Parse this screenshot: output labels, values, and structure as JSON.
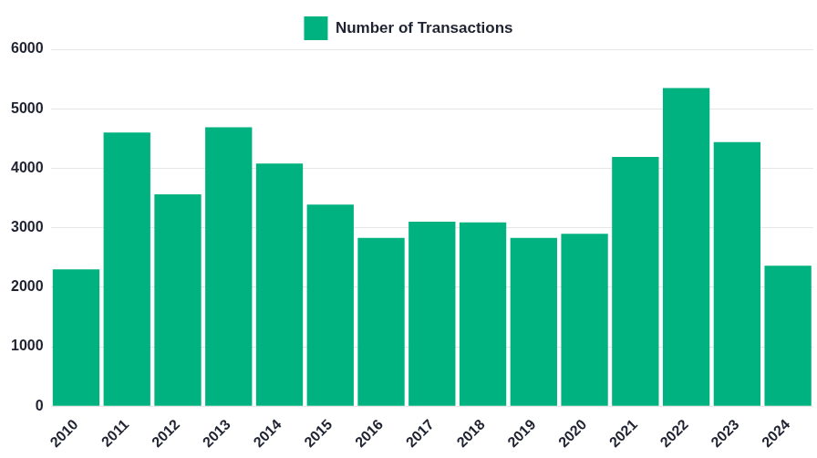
{
  "chart_data": {
    "type": "bar",
    "categories": [
      "2010",
      "2011",
      "2012",
      "2013",
      "2014",
      "2015",
      "2016",
      "2017",
      "2018",
      "2019",
      "2020",
      "2021",
      "2022",
      "2023",
      "2024"
    ],
    "series": [
      {
        "name": "Number of Transactions",
        "color": "#00b27f",
        "values": [
          2300,
          4600,
          3560,
          4690,
          4080,
          3390,
          2830,
          3100,
          3090,
          2830,
          2900,
          4190,
          5350,
          4440,
          2360
        ]
      }
    ],
    "ylim": [
      0,
      6000
    ],
    "yticks": [
      0,
      1000,
      2000,
      3000,
      4000,
      5000,
      6000
    ],
    "grid": true,
    "legend": "top"
  }
}
